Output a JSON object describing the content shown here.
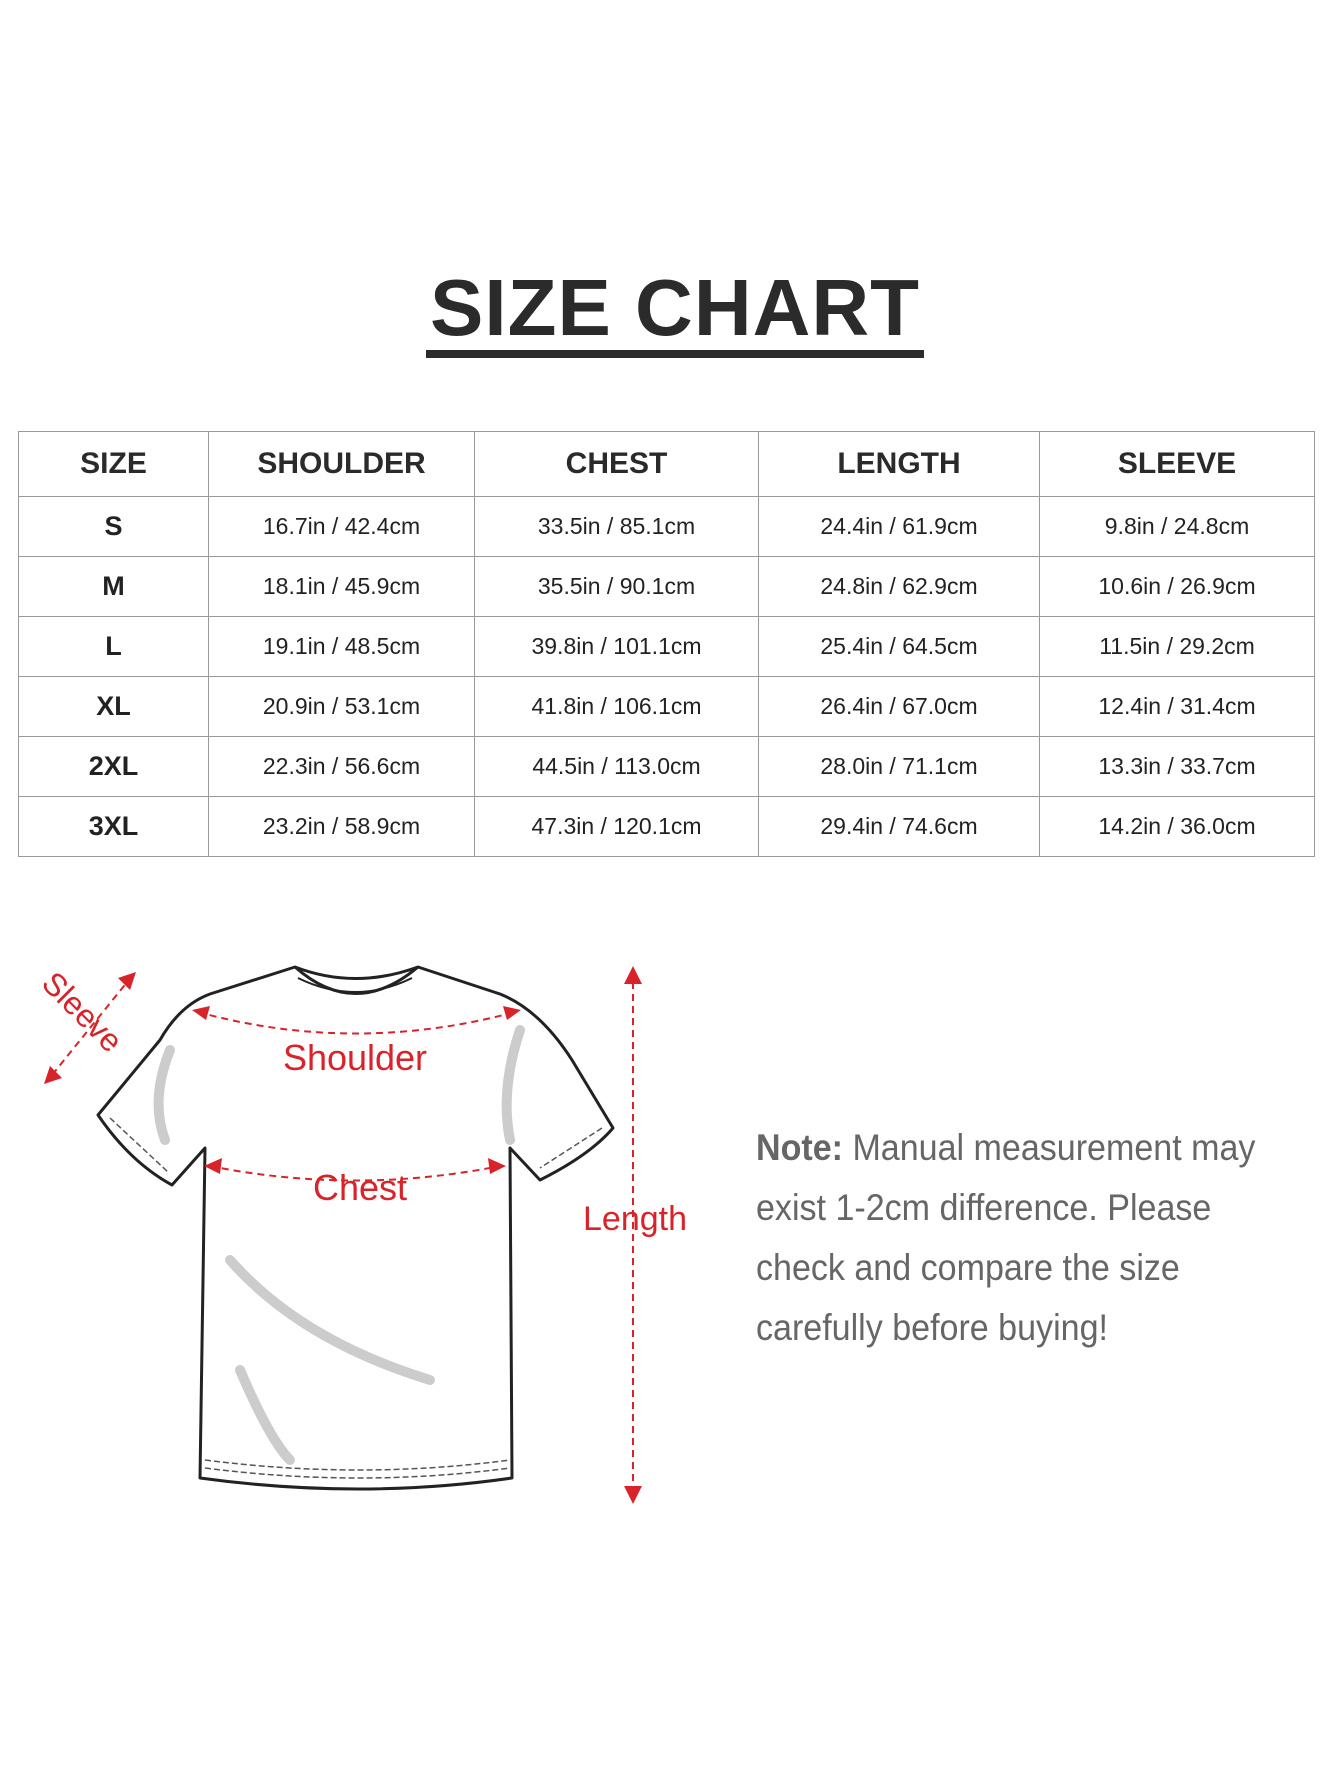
{
  "title": "SIZE CHART",
  "table": {
    "headers": [
      "SIZE",
      "SHOULDER",
      "CHEST",
      "LENGTH",
      "SLEEVE"
    ],
    "rows": [
      [
        "S",
        "16.7in / 42.4cm",
        "33.5in / 85.1cm",
        "24.4in / 61.9cm",
        "9.8in / 24.8cm"
      ],
      [
        "M",
        "18.1in / 45.9cm",
        "35.5in / 90.1cm",
        "24.8in / 62.9cm",
        "10.6in / 26.9cm"
      ],
      [
        "L",
        "19.1in / 48.5cm",
        "39.8in / 101.1cm",
        "25.4in / 64.5cm",
        "11.5in / 29.2cm"
      ],
      [
        "XL",
        "20.9in / 53.1cm",
        "41.8in / 106.1cm",
        "26.4in / 67.0cm",
        "12.4in / 31.4cm"
      ],
      [
        "2XL",
        "22.3in / 56.6cm",
        "44.5in / 113.0cm",
        "28.0in / 71.1cm",
        "13.3in / 33.7cm"
      ],
      [
        "3XL",
        "23.2in / 58.9cm",
        "47.3in / 120.1cm",
        "29.4in / 74.6cm",
        "14.2in / 36.0cm"
      ]
    ]
  },
  "diagram": {
    "labels": {
      "sleeve": "Sleeve",
      "shoulder": "Shoulder",
      "chest": "Chest",
      "length": "Length"
    },
    "accent_color": "#d8232a"
  },
  "note": {
    "label": "Note:",
    "lines": [
      "Manual measurement may",
      "exist 1-2cm difference. Please",
      "check and compare the size",
      "carefully before buying!"
    ]
  }
}
